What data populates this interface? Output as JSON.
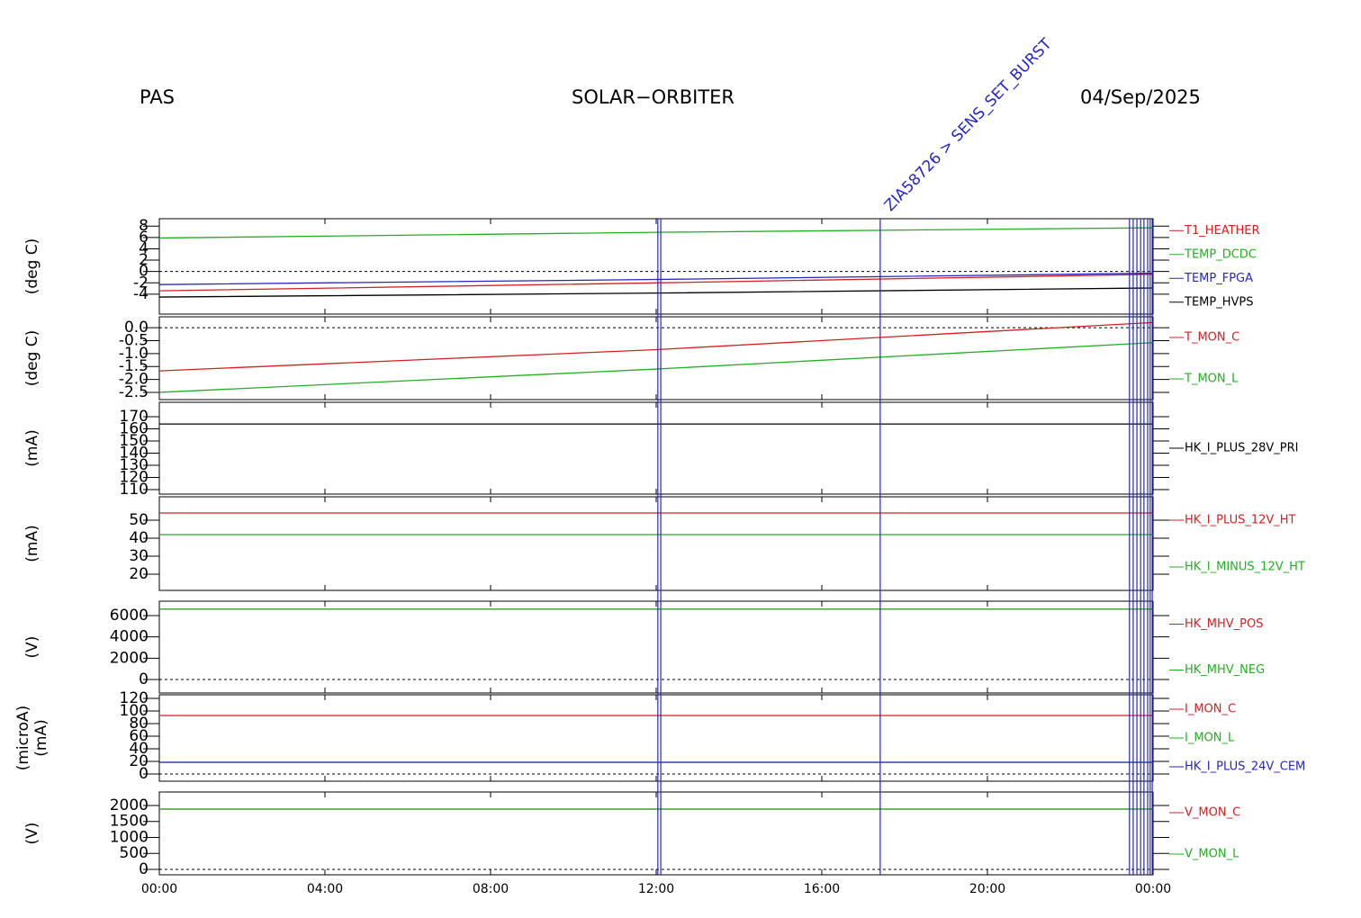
{
  "header": {
    "left": "PAS",
    "center": "SOLAR−ORBITER",
    "right": "04/Sep/2025"
  },
  "events": {
    "x": [
      12.04,
      12.11,
      17.41,
      23.43,
      23.52,
      23.61,
      23.7,
      23.78,
      23.87,
      23.93,
      23.98
    ],
    "labels": [
      null,
      null,
      "ZIA58726 > SENS_SET_BURST",
      null,
      null,
      null,
      null,
      null,
      null,
      null,
      null
    ],
    "color": "#2626c4"
  },
  "chart_data": [
    {
      "type": "line",
      "ylabel": "(deg C)",
      "x": [
        0,
        12,
        24
      ],
      "xlim": [
        0,
        24
      ],
      "ylim": [
        -7.5,
        9.3
      ],
      "yticks": [
        -4,
        -2,
        0,
        2,
        4,
        6,
        8
      ],
      "ref_line": 0,
      "series": [
        {
          "name": "T1_HEATHER",
          "color": "#d42020",
          "values": [
            -3.4,
            -2.0,
            -0.5
          ]
        },
        {
          "name": "TEMP_DCDC",
          "color": "#20b020",
          "values": [
            5.9,
            6.9,
            7.7
          ]
        },
        {
          "name": "TEMP_FPGA",
          "color": "#2626c4",
          "values": [
            -2.3,
            -1.4,
            -0.3
          ]
        },
        {
          "name": "TEMP_HVPS",
          "color": "#000000",
          "values": [
            -4.5,
            -3.8,
            -2.9
          ]
        }
      ]
    },
    {
      "type": "line",
      "ylabel": "(deg C)",
      "x": [
        0,
        12,
        24
      ],
      "xlim": [
        0,
        24
      ],
      "ylim": [
        -2.78,
        0.42
      ],
      "yticks": [
        {
          "value": 0,
          "label": "0.0"
        },
        -0.5,
        {
          "value": -1,
          "label": "-1.0"
        },
        -1.5,
        {
          "value": -2,
          "label": "-2.0"
        },
        -2.5
      ],
      "ref_line": 0,
      "series": [
        {
          "name": "T_MON_C",
          "color": "#d42020",
          "values": [
            -1.67,
            -0.85,
            0.2
          ]
        },
        {
          "name": "T_MON_L",
          "color": "#20b020",
          "values": [
            -2.5,
            -1.6,
            -0.58
          ]
        }
      ]
    },
    {
      "type": "line",
      "ylabel": "(mA)",
      "x": [
        0,
        12,
        24
      ],
      "xlim": [
        0,
        24
      ],
      "ylim": [
        106.3,
        181.9
      ],
      "yticks": [
        110,
        120,
        130,
        140,
        150,
        160,
        170
      ],
      "series": [
        {
          "name": "HK_I_PLUS_28V_PRI",
          "color": "#000000",
          "values": [
            164,
            164,
            164
          ]
        }
      ]
    },
    {
      "type": "line",
      "ylabel": "(mA)",
      "x": [
        0,
        12,
        24
      ],
      "xlim": [
        0,
        24
      ],
      "ylim": [
        11,
        63
      ],
      "yticks": [
        20,
        30,
        40,
        50
      ],
      "series": [
        {
          "name": "HK_I_PLUS_12V_HT",
          "color": "#d42020",
          "values": [
            54,
            54,
            54
          ]
        },
        {
          "name": "HK_I_MINUS_12V_HT",
          "color": "#20b020",
          "values": [
            42,
            42,
            42
          ]
        }
      ]
    },
    {
      "type": "line",
      "ylabel": "(V)",
      "x": [
        0,
        12,
        24
      ],
      "xlim": [
        0,
        24
      ],
      "ylim": [
        -1268,
        7352
      ],
      "yticks": [
        0,
        2000,
        4000,
        6000
      ],
      "ref_line": 0,
      "series": [
        {
          "name": "HK_MHV_POS",
          "color": "#d42020",
          "values": [
            6600,
            6600,
            6600
          ]
        },
        {
          "name": "HK_MHV_NEG",
          "color": "#20b020",
          "values": [
            6600,
            6600,
            6600
          ]
        }
      ]
    },
    {
      "type": "line",
      "ylabel": "(microA)",
      "ylabel2": "(mA)",
      "x": [
        0,
        12,
        24
      ],
      "xlim": [
        0,
        24
      ],
      "ylim": [
        -11.4,
        125.7
      ],
      "yticks": [
        0,
        20,
        40,
        60,
        80,
        100,
        120
      ],
      "ref_line": 0,
      "series": [
        {
          "name": "I_MON_C",
          "color": "#d42020",
          "values": [
            92.9,
            92.9,
            92.9
          ]
        },
        {
          "name": "I_MON_L",
          "color": "#20b020",
          "values": [
            18.6,
            18.6,
            18.6
          ]
        },
        {
          "name": "HK_I_PLUS_24V_CEM",
          "color": "#2626c4",
          "values": [
            18.6,
            18.6,
            18.6
          ]
        }
      ]
    },
    {
      "type": "line",
      "ylabel": "(V)",
      "x": [
        0,
        12,
        24
      ],
      "xlim": [
        0,
        24
      ],
      "ylim": [
        -169,
        2422
      ],
      "yticks": [
        0,
        500,
        1000,
        1500,
        2000
      ],
      "ref_line": 0,
      "xticks": [
        {
          "value": 0,
          "label": "00:00"
        },
        {
          "value": 4,
          "label": "04:00"
        },
        {
          "value": 8,
          "label": "08:00"
        },
        {
          "value": 12,
          "label": "12:00"
        },
        {
          "value": 16,
          "label": "16:00"
        },
        {
          "value": 20,
          "label": "20:00"
        },
        {
          "value": 24,
          "label": "00:00"
        }
      ],
      "series": [
        {
          "name": "V_MON_C",
          "color": "#d42020",
          "values": [
            1887,
            1887,
            1887
          ]
        },
        {
          "name": "V_MON_L",
          "color": "#20b020",
          "values": [
            1887,
            1887,
            1887
          ]
        }
      ]
    }
  ]
}
